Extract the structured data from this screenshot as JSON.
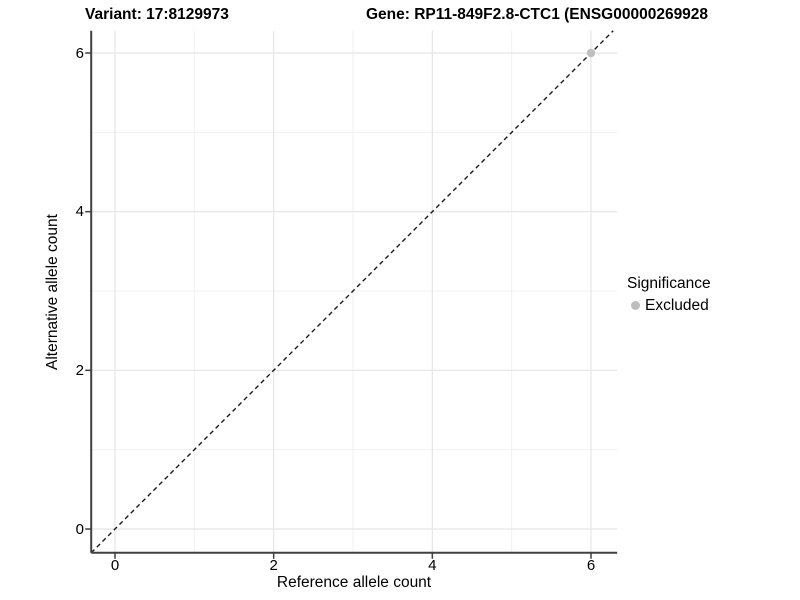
{
  "titles": {
    "variant": "Variant: 17:8129973",
    "gene": "Gene: RP11-849F2.8-CTC1 (ENSG00000269928"
  },
  "chart_data": {
    "type": "scatter",
    "title_left": "Variant: 17:8129973",
    "title_right": "Gene: RP11-849F2.8-CTC1 (ENSG00000269928",
    "xlabel": "Reference allele count",
    "ylabel": "Alternative allele count",
    "x_ticks": [
      0,
      2,
      4,
      6
    ],
    "y_ticks": [
      0,
      2,
      4,
      6
    ],
    "x_minor_ticks": [
      1,
      3,
      5
    ],
    "y_minor_ticks": [
      1,
      3,
      5
    ],
    "xlim": [
      -0.3,
      6.33
    ],
    "ylim": [
      -0.3,
      6.28
    ],
    "grid": true,
    "identity_line": {
      "style": "dashed",
      "equation": "y = x",
      "color": "#1a1a1a"
    },
    "series": [
      {
        "name": "Excluded",
        "color": "#bfbfbf",
        "points": [
          {
            "x": 6,
            "y": 6
          }
        ]
      }
    ],
    "legend": {
      "position": "right",
      "title": "Significance",
      "items": [
        {
          "label": "Excluded",
          "color": "#bdbdbd"
        }
      ]
    },
    "colors": {
      "background": "#ffffff",
      "grid_major": "#e5e5e5",
      "grid_minor": "#f1f1f1",
      "axis_line": "#404040",
      "text": "#000000"
    }
  }
}
